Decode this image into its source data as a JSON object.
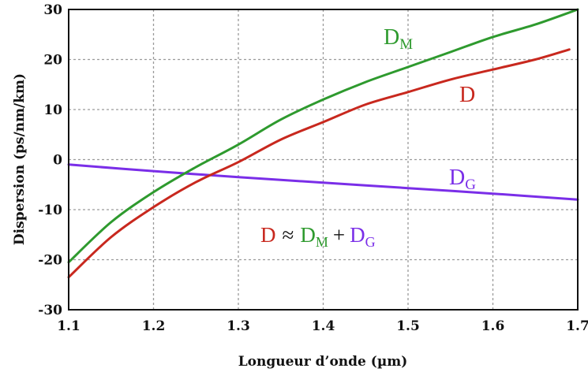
{
  "chart_data": {
    "type": "line",
    "title": "",
    "xlabel": "Longueur d’onde (µm)",
    "ylabel": "Dispersion (ps/nm/km)",
    "xlim": [
      1.1,
      1.7
    ],
    "ylim": [
      -30,
      30
    ],
    "x_ticks": [
      1.1,
      1.2,
      1.3,
      1.4,
      1.5,
      1.6,
      1.7
    ],
    "y_ticks": [
      -30,
      -20,
      -10,
      0,
      10,
      20,
      30
    ],
    "x_tick_labels": [
      "1.1",
      "1.2",
      "1.3",
      "1.4",
      "1.5",
      "1.6",
      "1.7"
    ],
    "y_tick_labels": [
      "-30",
      "-20",
      "-10",
      "0",
      "10",
      "20",
      "30"
    ],
    "grid": true,
    "legend": "none",
    "series": [
      {
        "name": "D_M",
        "color": "#2e9a2e",
        "x": [
          1.1,
          1.15,
          1.2,
          1.25,
          1.3,
          1.35,
          1.4,
          1.45,
          1.5,
          1.55,
          1.6,
          1.65,
          1.7
        ],
        "y": [
          -20.5,
          -12.5,
          -6.5,
          -1.5,
          3.0,
          8.0,
          12.0,
          15.5,
          18.5,
          21.5,
          24.5,
          27.0,
          30.0
        ]
      },
      {
        "name": "D",
        "color": "#c8281e",
        "x": [
          1.1,
          1.15,
          1.2,
          1.25,
          1.3,
          1.35,
          1.4,
          1.45,
          1.5,
          1.55,
          1.6,
          1.65,
          1.69
        ],
        "y": [
          -23.5,
          -15.5,
          -9.5,
          -4.5,
          -0.5,
          4.0,
          7.5,
          11.0,
          13.5,
          16.0,
          18.0,
          20.0,
          22.0
        ]
      },
      {
        "name": "D_G",
        "color": "#7a2ee8",
        "x": [
          1.1,
          1.2,
          1.3,
          1.4,
          1.5,
          1.6,
          1.7
        ],
        "y": [
          -1.0,
          -2.3,
          -3.5,
          -4.6,
          -5.7,
          -6.8,
          -8.0
        ]
      }
    ],
    "annotations": {
      "dm": {
        "main": "D",
        "sub": "M",
        "color": "#2e9a2e"
      },
      "d": {
        "main": "D",
        "color": "#c8281e"
      },
      "dg": {
        "main": "D",
        "sub": "G",
        "color": "#7a2ee8"
      },
      "equation": {
        "d": "D",
        "approx": "≈",
        "dm": "D",
        "dm_sub": "M",
        "plus": "+",
        "dg": "D",
        "dg_sub": "G"
      }
    },
    "colors": {
      "d": "#c8281e",
      "dm": "#2e9a2e",
      "dg": "#7a2ee8",
      "operator": "#111111"
    }
  }
}
